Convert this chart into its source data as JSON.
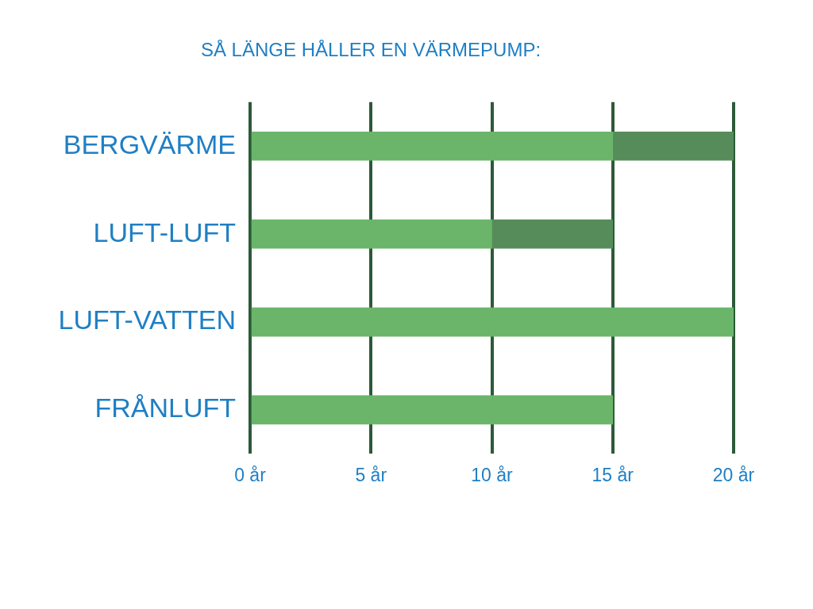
{
  "chart_data": {
    "type": "bar",
    "orientation": "horizontal",
    "stacked": true,
    "title": "SÅ LÄNGE HÅLLER EN VÄRMEPUMP:",
    "categories": [
      "BERGVÄRME",
      "LUFT-LUFT",
      "LUFT-VATTEN",
      "FRÅNLUFT"
    ],
    "series": [
      {
        "color": "#6ab56a",
        "values": [
          15,
          10,
          20,
          15
        ]
      },
      {
        "color": "#568c5a",
        "values": [
          5,
          5,
          null,
          null
        ]
      }
    ],
    "xlim": [
      0,
      20
    ],
    "xticks": [
      {
        "value": 0,
        "label": "0 år"
      },
      {
        "value": 5,
        "label": "5 år"
      },
      {
        "value": 10,
        "label": "10 år"
      },
      {
        "value": 15,
        "label": "15 år"
      },
      {
        "value": 20,
        "label": "20 år"
      }
    ],
    "grid": "x"
  }
}
